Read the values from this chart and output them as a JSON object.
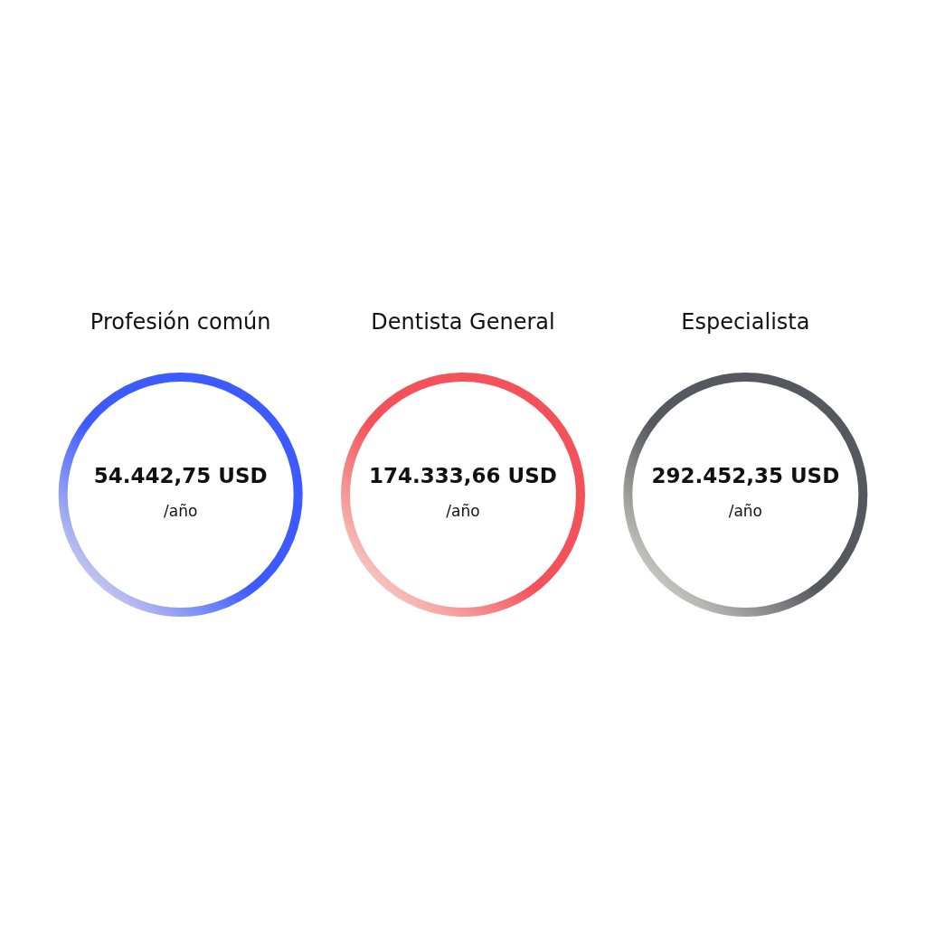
{
  "chart_data": {
    "type": "other",
    "categories": [
      "Profesión común",
      "Dentista General",
      "Especialista"
    ],
    "values": [
      54442.75,
      174333.66,
      292452.35
    ],
    "value_labels": [
      "54.442,75 USD",
      "174.333,66 USD",
      "292.452,35 USD"
    ],
    "colors": [
      "#3d5afe",
      "#f4525a",
      "#55585e"
    ],
    "annotations": [
      "/año",
      "/año",
      "/año"
    ]
  }
}
